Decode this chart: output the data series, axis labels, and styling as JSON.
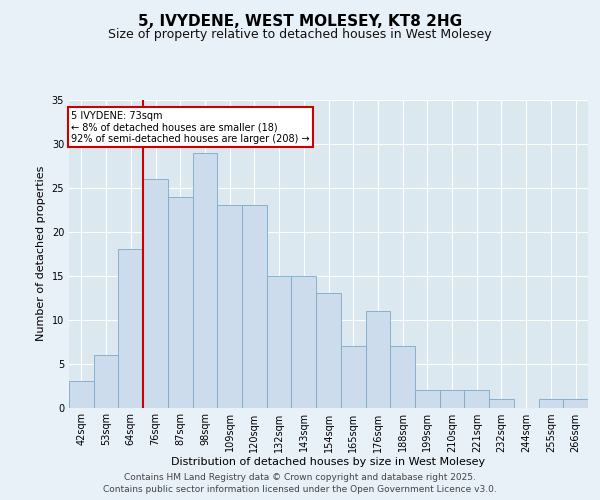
{
  "title": "5, IVYDENE, WEST MOLESEY, KT8 2HG",
  "subtitle": "Size of property relative to detached houses in West Molesey",
  "xlabel": "Distribution of detached houses by size in West Molesey",
  "ylabel": "Number of detached properties",
  "bin_labels": [
    "42sqm",
    "53sqm",
    "64sqm",
    "76sqm",
    "87sqm",
    "98sqm",
    "109sqm",
    "120sqm",
    "132sqm",
    "143sqm",
    "154sqm",
    "165sqm",
    "176sqm",
    "188sqm",
    "199sqm",
    "210sqm",
    "221sqm",
    "232sqm",
    "244sqm",
    "255sqm",
    "266sqm"
  ],
  "bar_values": [
    3,
    6,
    18,
    26,
    24,
    29,
    23,
    23,
    15,
    15,
    13,
    7,
    11,
    7,
    2,
    2,
    2,
    1,
    0,
    1,
    1
  ],
  "bar_color": "#ccdcec",
  "bar_edge_color": "#7aaac8",
  "bg_color": "#dce8f0",
  "grid_color": "#ffffff",
  "annotation_text": "5 IVYDENE: 73sqm\n← 8% of detached houses are smaller (18)\n92% of semi-detached houses are larger (208) →",
  "annotation_box_color": "#ffffff",
  "annotation_box_edge": "#cc0000",
  "footer_text": "Contains HM Land Registry data © Crown copyright and database right 2025.\nContains public sector information licensed under the Open Government Licence v3.0.",
  "ylim": [
    0,
    35
  ],
  "yticks": [
    0,
    5,
    10,
    15,
    20,
    25,
    30,
    35
  ],
  "title_fontsize": 11,
  "subtitle_fontsize": 9,
  "label_fontsize": 8,
  "tick_fontsize": 7,
  "footer_fontsize": 6.5,
  "fig_bg_color": "#e8f0f8"
}
